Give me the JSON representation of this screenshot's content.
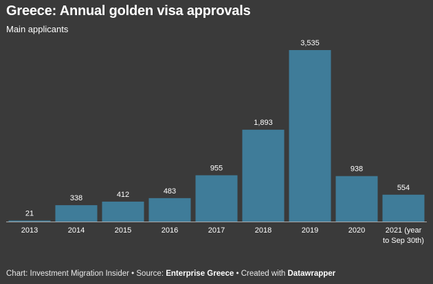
{
  "chart_data": {
    "type": "bar",
    "title": "Greece: Annual golden visa approvals",
    "subtitle": "Main applicants",
    "categories": [
      "2013",
      "2014",
      "2015",
      "2016",
      "2017",
      "2018",
      "2019",
      "2020",
      "2021 (year to Sep 30th)"
    ],
    "category_lines": [
      [
        "2013"
      ],
      [
        "2014"
      ],
      [
        "2015"
      ],
      [
        "2016"
      ],
      [
        "2017"
      ],
      [
        "2018"
      ],
      [
        "2019"
      ],
      [
        "2020"
      ],
      [
        "2021 (year",
        "to Sep 30th)"
      ]
    ],
    "values": [
      21,
      338,
      412,
      483,
      955,
      1893,
      3535,
      938,
      554
    ],
    "value_labels": [
      "21",
      "338",
      "412",
      "483",
      "955",
      "1,893",
      "3,535",
      "938",
      "554"
    ],
    "ylim": [
      0,
      3535
    ],
    "bar_color": "#3f7c99",
    "grid": false,
    "legend": "none"
  },
  "footer": {
    "prefix": "Chart: Investment Migration Insider • Source: ",
    "source": "Enterprise Greece",
    "middle": " • Created with ",
    "tool": "Datawrapper"
  },
  "colors": {
    "background": "#3a3a3a",
    "text": "#ffffff",
    "axis": "#aaaaaa"
  }
}
